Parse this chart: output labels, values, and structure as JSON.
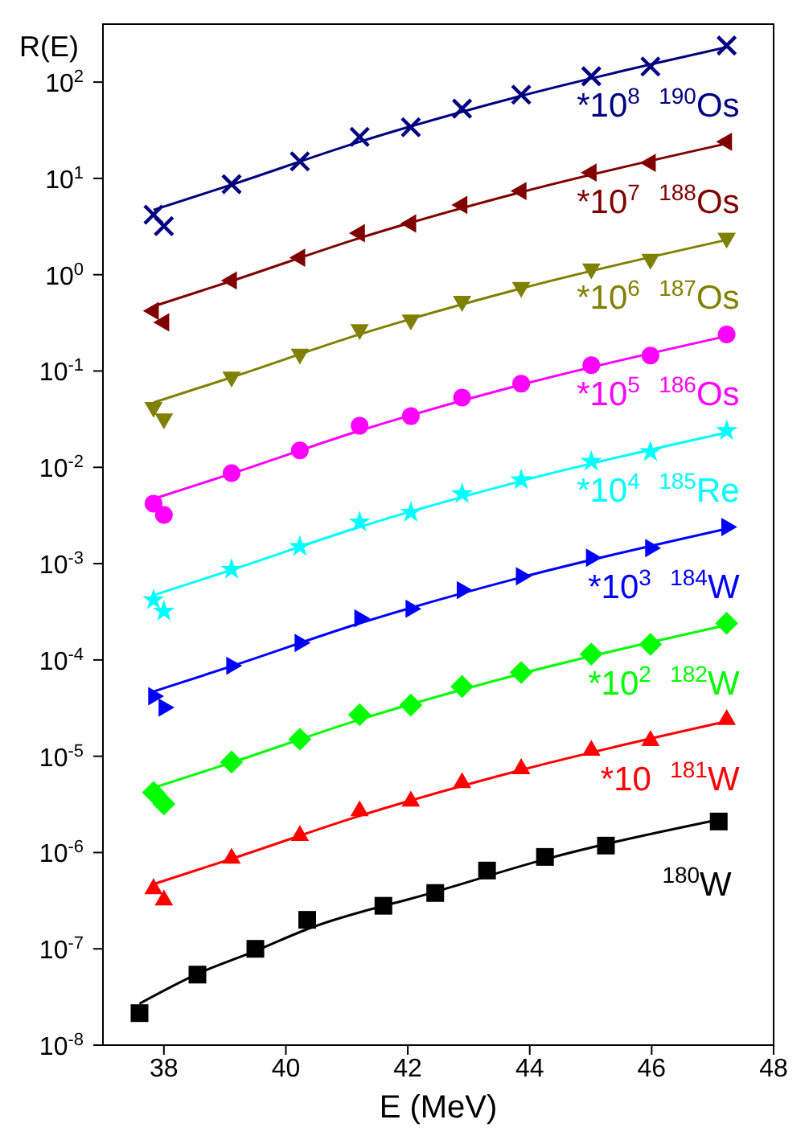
{
  "chart_data": {
    "type": "scatter",
    "xlabel": "E (MeV)",
    "ylabel": "R(E)",
    "log": "y",
    "legend": false,
    "xlim": [
      37,
      48
    ],
    "xticks": [
      38,
      40,
      42,
      44,
      46,
      48
    ],
    "ylim": [
      1e-08,
      400
    ],
    "yticks": [
      {
        "value": 1e-08,
        "label": "10$^{-8}$"
      },
      {
        "value": 1e-07,
        "label": "10$^{-7}$"
      },
      {
        "value": 1e-06,
        "label": "10$^{-6}$"
      },
      {
        "value": 1e-05,
        "label": "10$^{-5}$"
      },
      {
        "value": 0.0001,
        "label": "10$^{-4}$"
      },
      {
        "value": 0.001,
        "label": "10$^{-3}$"
      },
      {
        "value": 0.01,
        "label": "10$^{-2}$"
      },
      {
        "value": 0.1,
        "label": "10$^{-1}$"
      },
      {
        "value": 1,
        "label": "10$^{0}$"
      },
      {
        "value": 10,
        "label": "10$^{1}$"
      },
      {
        "value": 100,
        "label": "10$^{2}$"
      }
    ],
    "series": [
      {
        "name": "*10$^{8}$  $^{190}$Os",
        "color": "#000080",
        "marker": "cross",
        "x": [
          37.83,
          38.0,
          39.11,
          40.23,
          41.21,
          42.05,
          42.89,
          43.86,
          45.01,
          45.98,
          47.23
        ],
        "values": [
          4.2,
          3.2,
          8.7,
          15,
          27,
          34,
          53,
          74,
          115,
          145,
          240
        ]
      },
      {
        "type": "line",
        "color": "#000080",
        "marker": "none",
        "x": [
          37.83,
          39.11,
          41.21,
          43.86,
          47.23
        ],
        "values": [
          4.7,
          8.6,
          24,
          72,
          230
        ]
      },
      {
        "name": "*10$^{7}$  $^{188}$Os",
        "color": "#800000",
        "marker": "triangle-left",
        "x": [
          37.83,
          38.0,
          39.11,
          40.23,
          41.21,
          42.05,
          42.89,
          43.86,
          45.01,
          45.98,
          47.23
        ],
        "values": [
          0.42,
          0.32,
          0.87,
          1.5,
          2.7,
          3.4,
          5.3,
          7.4,
          11.5,
          14.5,
          24
        ]
      },
      {
        "type": "line",
        "color": "#800000",
        "marker": "none",
        "x": [
          37.83,
          39.11,
          41.21,
          43.86,
          47.23
        ],
        "values": [
          0.47,
          0.86,
          2.4,
          7.2,
          23
        ]
      },
      {
        "name": "*10$^{6}$  $^{187}$Os",
        "color": "#808000",
        "marker": "triangle-down",
        "x": [
          37.83,
          38.0,
          39.11,
          40.23,
          41.21,
          42.05,
          42.89,
          43.86,
          45.01,
          45.98,
          47.23
        ],
        "values": [
          0.042,
          0.032,
          0.087,
          0.15,
          0.27,
          0.34,
          0.53,
          0.74,
          1.15,
          1.45,
          2.4
        ]
      },
      {
        "type": "line",
        "color": "#808000",
        "marker": "none",
        "x": [
          37.83,
          39.11,
          41.21,
          43.86,
          47.23
        ],
        "values": [
          0.047,
          0.086,
          0.24,
          0.72,
          2.3
        ]
      },
      {
        "name": "*10$^{5}$  $^{186}$Os",
        "color": "#ff00ff",
        "marker": "circle",
        "x": [
          37.83,
          38.0,
          39.11,
          40.23,
          41.21,
          42.05,
          42.89,
          43.86,
          45.01,
          45.98,
          47.23
        ],
        "values": [
          0.0042,
          0.0032,
          0.0087,
          0.015,
          0.027,
          0.034,
          0.053,
          0.074,
          0.115,
          0.145,
          0.24
        ]
      },
      {
        "type": "line",
        "color": "#ff00ff",
        "marker": "none",
        "x": [
          37.83,
          39.11,
          41.21,
          43.86,
          47.23
        ],
        "values": [
          0.0047,
          0.0086,
          0.024,
          0.072,
          0.23
        ]
      },
      {
        "name": "*10$^{4}$  $^{185}$Re",
        "color": "#00ffff",
        "marker": "star",
        "x": [
          37.83,
          38.0,
          39.11,
          40.23,
          41.21,
          42.05,
          42.89,
          43.86,
          45.01,
          45.98,
          47.23
        ],
        "values": [
          0.00042,
          0.00032,
          0.00087,
          0.0015,
          0.0027,
          0.0034,
          0.0053,
          0.0074,
          0.0115,
          0.0145,
          0.024
        ]
      },
      {
        "type": "line",
        "color": "#00ffff",
        "marker": "none",
        "x": [
          37.83,
          39.11,
          41.21,
          43.86,
          47.23
        ],
        "values": [
          0.00047,
          0.00086,
          0.0024,
          0.0072,
          0.023
        ]
      },
      {
        "name": "*10$^{3}$  $^{184}$W",
        "color": "#0000ff",
        "marker": "triangle-right",
        "x": [
          37.83,
          38.0,
          39.11,
          40.23,
          41.21,
          42.05,
          42.89,
          43.86,
          45.01,
          45.98,
          47.23
        ],
        "values": [
          4.2e-05,
          3.2e-05,
          8.7e-05,
          0.00015,
          0.00027,
          0.00034,
          0.00053,
          0.00074,
          0.00115,
          0.00145,
          0.0024
        ]
      },
      {
        "type": "line",
        "color": "#0000ff",
        "marker": "none",
        "x": [
          37.83,
          39.11,
          41.21,
          43.86,
          47.23
        ],
        "values": [
          4.7e-05,
          8.6e-05,
          0.00024,
          0.00072,
          0.0023
        ]
      },
      {
        "name": "*10$^{2}$  $^{182}$W",
        "color": "#00ff00",
        "marker": "diamond",
        "x": [
          37.83,
          38.0,
          39.11,
          40.23,
          41.21,
          42.05,
          42.89,
          43.86,
          45.01,
          45.98,
          47.23
        ],
        "values": [
          4.2e-06,
          3.2e-06,
          8.7e-06,
          1.5e-05,
          2.7e-05,
          3.4e-05,
          5.3e-05,
          7.4e-05,
          0.000115,
          0.000145,
          0.00024
        ]
      },
      {
        "type": "line",
        "color": "#00ff00",
        "marker": "none",
        "x": [
          37.83,
          39.11,
          41.21,
          43.86,
          47.23
        ],
        "values": [
          4.7e-06,
          8.6e-06,
          2.4e-05,
          7.2e-05,
          0.00023
        ]
      },
      {
        "name": "*10  $^{181}$W",
        "color": "#ff0000",
        "marker": "triangle",
        "x": [
          37.83,
          38.0,
          39.11,
          40.23,
          41.21,
          42.05,
          42.89,
          43.86,
          45.01,
          45.98,
          47.23
        ],
        "values": [
          4.2e-07,
          3.2e-07,
          8.7e-07,
          1.5e-06,
          2.7e-06,
          3.4e-06,
          5.3e-06,
          7.4e-06,
          1.15e-05,
          1.45e-05,
          2.4e-05
        ]
      },
      {
        "type": "line",
        "color": "#ff0000",
        "marker": "none",
        "x": [
          37.83,
          39.11,
          41.21,
          43.86,
          47.23
        ],
        "values": [
          4.7e-07,
          8.6e-07,
          2.4e-06,
          7.2e-06,
          2.3e-05
        ]
      },
      {
        "name": "$^{180}$W",
        "color": "#000000",
        "marker": "square",
        "x": [
          37.6,
          38.55,
          39.5,
          40.35,
          41.6,
          42.45,
          43.3,
          44.25,
          45.25,
          47.1
        ],
        "values": [
          2.15e-08,
          5.4e-08,
          1e-07,
          2e-07,
          2.8e-07,
          3.8e-07,
          6.5e-07,
          9e-07,
          1.18e-06,
          2.1e-06
        ]
      },
      {
        "type": "line",
        "color": "#000000",
        "marker": "none",
        "x": [
          37.6,
          38.55,
          39.5,
          40.35,
          42.45,
          44.25,
          47.1
        ],
        "values": [
          2.7e-08,
          5.5e-08,
          9.5e-08,
          1.6e-07,
          3.9e-07,
          8.5e-07,
          2.2e-06
        ]
      }
    ]
  }
}
